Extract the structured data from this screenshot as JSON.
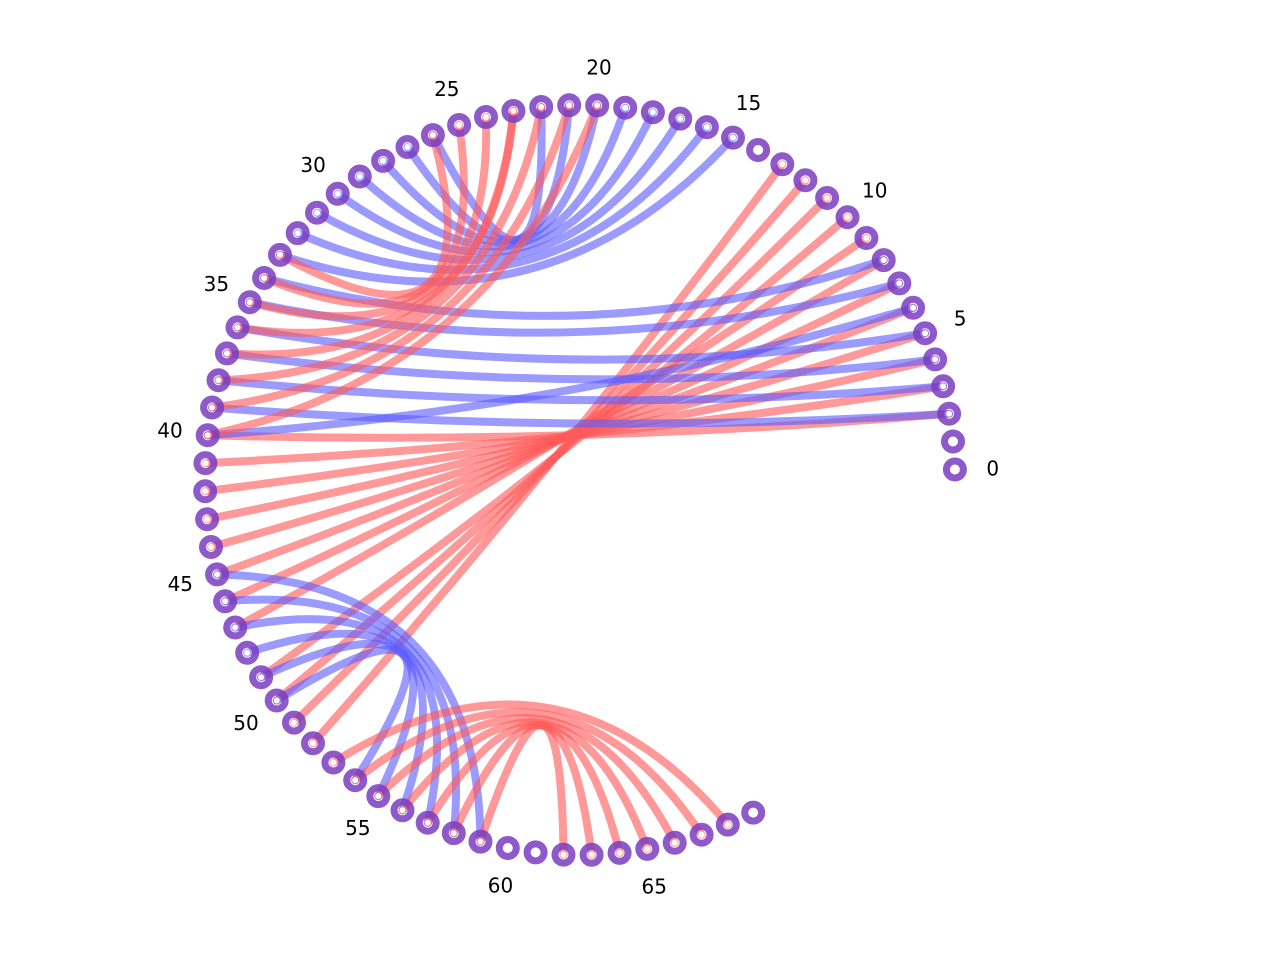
{
  "diagram": {
    "type": "arc-chord-diagram",
    "node_count": 70,
    "node_ids": [
      0,
      1,
      2,
      3,
      4,
      5,
      6,
      7,
      8,
      9,
      10,
      11,
      12,
      13,
      14,
      15,
      16,
      17,
      18,
      19,
      20,
      21,
      22,
      23,
      24,
      25,
      26,
      27,
      28,
      29,
      30,
      31,
      32,
      33,
      34,
      35,
      36,
      37,
      38,
      39,
      40,
      41,
      42,
      43,
      44,
      45,
      46,
      47,
      48,
      49,
      50,
      51,
      52,
      53,
      54,
      55,
      56,
      57,
      58,
      59,
      60,
      61,
      62,
      63,
      64,
      65,
      66,
      67,
      68,
      69
    ],
    "tick_labels": [
      "0",
      "5",
      "10",
      "15",
      "20",
      "25",
      "30",
      "35",
      "40",
      "45",
      "50",
      "55",
      "60",
      "65"
    ],
    "colors": {
      "red_edge": "#ff5a5a",
      "blue_edge": "#5c5cff",
      "node_ring": "#7a3cc0",
      "node_center": "#ffffff",
      "background": "#ffffff"
    },
    "edges": [
      {
        "source": 2,
        "target": 40,
        "color": "red"
      },
      {
        "source": 3,
        "target": 41,
        "color": "red"
      },
      {
        "source": 4,
        "target": 42,
        "color": "red"
      },
      {
        "source": 5,
        "target": 43,
        "color": "red"
      },
      {
        "source": 6,
        "target": 44,
        "color": "red"
      },
      {
        "source": 7,
        "target": 45,
        "color": "red"
      },
      {
        "source": 8,
        "target": 46,
        "color": "red"
      },
      {
        "source": 9,
        "target": 47,
        "color": "red"
      },
      {
        "source": 10,
        "target": 49,
        "color": "red"
      },
      {
        "source": 11,
        "target": 50,
        "color": "red"
      },
      {
        "source": 12,
        "target": 51,
        "color": "red"
      },
      {
        "source": 13,
        "target": 52,
        "color": "red"
      },
      {
        "source": 2,
        "target": 39,
        "color": "blue"
      },
      {
        "source": 3,
        "target": 38,
        "color": "blue"
      },
      {
        "source": 4,
        "target": 37,
        "color": "blue"
      },
      {
        "source": 5,
        "target": 36,
        "color": "blue"
      },
      {
        "source": 6,
        "target": 40,
        "color": "blue"
      },
      {
        "source": 7,
        "target": 35,
        "color": "blue"
      },
      {
        "source": 8,
        "target": 34,
        "color": "blue"
      },
      {
        "source": 15,
        "target": 33,
        "color": "blue"
      },
      {
        "source": 16,
        "target": 32,
        "color": "blue"
      },
      {
        "source": 17,
        "target": 31,
        "color": "blue"
      },
      {
        "source": 18,
        "target": 30,
        "color": "blue"
      },
      {
        "source": 19,
        "target": 29,
        "color": "blue"
      },
      {
        "source": 20,
        "target": 28,
        "color": "blue"
      },
      {
        "source": 21,
        "target": 27,
        "color": "blue"
      },
      {
        "source": 22,
        "target": 26,
        "color": "blue"
      },
      {
        "source": 23,
        "target": 36,
        "color": "red"
      },
      {
        "source": 24,
        "target": 35,
        "color": "red"
      },
      {
        "source": 25,
        "target": 34,
        "color": "red"
      },
      {
        "source": 26,
        "target": 33,
        "color": "red"
      },
      {
        "source": 20,
        "target": 40,
        "color": "red"
      },
      {
        "source": 21,
        "target": 39,
        "color": "red"
      },
      {
        "source": 22,
        "target": 38,
        "color": "red"
      },
      {
        "source": 23,
        "target": 37,
        "color": "red"
      },
      {
        "source": 45,
        "target": 59,
        "color": "blue"
      },
      {
        "source": 46,
        "target": 58,
        "color": "blue"
      },
      {
        "source": 47,
        "target": 57,
        "color": "blue"
      },
      {
        "source": 48,
        "target": 56,
        "color": "blue"
      },
      {
        "source": 49,
        "target": 55,
        "color": "blue"
      },
      {
        "source": 50,
        "target": 54,
        "color": "blue"
      },
      {
        "source": 53,
        "target": 68,
        "color": "red"
      },
      {
        "source": 54,
        "target": 67,
        "color": "red"
      },
      {
        "source": 55,
        "target": 66,
        "color": "red"
      },
      {
        "source": 56,
        "target": 65,
        "color": "red"
      },
      {
        "source": 57,
        "target": 64,
        "color": "red"
      },
      {
        "source": 58,
        "target": 63,
        "color": "red"
      },
      {
        "source": 59,
        "target": 62,
        "color": "red"
      }
    ]
  }
}
